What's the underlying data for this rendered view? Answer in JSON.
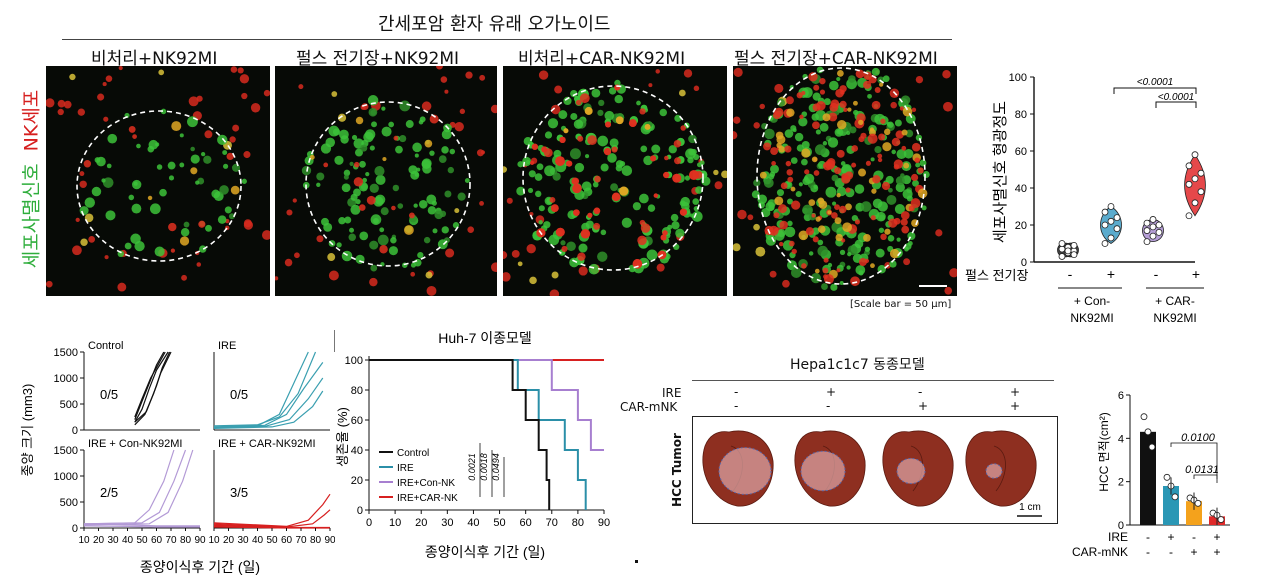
{
  "top": {
    "title": "간세포암 환자 유래 오가노이드",
    "panel_labels": [
      "비처리+NK92MI",
      "펄스 전기장+NK92MI",
      "비처리+CAR-NK92MI",
      "펄스 전기장+CAR-NK92MI"
    ],
    "side_label_green": "세포사멸신호",
    "side_label_red": "NK세포",
    "scale_bar": "[Scale bar = 50 μm]"
  },
  "violin": {
    "ylabel": "세포사멸신호 형광정도",
    "row_label": "펄스 전기장",
    "signs": [
      "-",
      "+",
      "-",
      "+"
    ],
    "group_labels": [
      "+ Con-\nNK92MI",
      "+ CAR-\nNK92MI"
    ],
    "group_label_lines": [
      [
        "+ Con-",
        "NK92MI"
      ],
      [
        "+ CAR-",
        "NK92MI"
      ]
    ],
    "p_values": [
      "<0.0001",
      "<0.0001"
    ],
    "colors": [
      "#222222",
      "#3e9cc4",
      "#a98ed0",
      "#e0282a"
    ]
  },
  "growth": {
    "ylabel": "종양 크기 (mm3)",
    "xlabel": "종양이식후 기간 (일)",
    "panels": [
      {
        "title": "Control",
        "ratio": "0/5",
        "color": "#111111"
      },
      {
        "title": "IRE",
        "ratio": "0/5",
        "color": "#3a9fb0"
      },
      {
        "title": "IRE + Con-NK92MI",
        "ratio": "2/5",
        "color": "#b39ad6"
      },
      {
        "title": "IRE + CAR-NK92MI",
        "ratio": "3/5",
        "color": "#d72020"
      }
    ],
    "yticks": [
      "0",
      "500",
      "1000",
      "1500"
    ],
    "xticks": [
      "10",
      "20",
      "30",
      "40",
      "50",
      "60",
      "70",
      "80",
      "90"
    ]
  },
  "survival": {
    "title": "Huh-7 이종모델",
    "ylabel": "생존율 (%)",
    "xlabel": "종양이식후 기간 (일)",
    "legend": [
      "Control",
      "IRE",
      "IRE+Con-NK",
      "IRE+CAR-NK"
    ],
    "p_values": [
      "0.0021",
      "0.0018",
      "0.0494"
    ],
    "yticks": [
      "0",
      "20",
      "40",
      "60",
      "80",
      "100"
    ],
    "xticks": [
      "0",
      "10",
      "20",
      "30",
      "40",
      "50",
      "60",
      "70",
      "80",
      "90"
    ]
  },
  "liver": {
    "title": "Hepa1c1c7 동종모델",
    "row_labels": [
      "IRE",
      "CAR-mNK"
    ],
    "ire_signs": [
      "-",
      "+",
      "-",
      "+"
    ],
    "car_signs": [
      "-",
      "-",
      "+",
      "+"
    ],
    "tumor_label": "HCC Tumor",
    "scale_bar": "1 cm"
  },
  "bar": {
    "ylabel": "HCC 면적(cm²)",
    "p_values": [
      "0.0100",
      "0.0131"
    ],
    "row_labels": [
      "IRE",
      "CAR-mNK"
    ],
    "ire_signs": [
      "-",
      "+",
      "-",
      "+"
    ],
    "car_signs": [
      "-",
      "-",
      "+",
      "+"
    ],
    "yticks": [
      "0",
      "2",
      "4",
      "6"
    ]
  },
  "chart_data": [
    {
      "type": "violin",
      "ylabel": "세포사멸신호 형광정도",
      "ylim": [
        0,
        100
      ],
      "categories": [
        "- Con-NK92MI",
        "+ Con-NK92MI",
        "- CAR-NK92MI",
        "+ CAR-NK92MI"
      ],
      "points": [
        [
          3,
          5,
          6,
          7,
          8,
          9,
          10,
          6,
          4
        ],
        [
          10,
          13,
          18,
          20,
          22,
          24,
          27,
          30
        ],
        [
          11,
          14,
          16,
          17,
          19,
          20,
          21,
          23
        ],
        [
          25,
          32,
          38,
          42,
          45,
          48,
          52,
          58
        ]
      ]
    },
    {
      "type": "line",
      "title": "Control",
      "xlabel": "종양이식후 기간 (일)",
      "ylabel": "종양 크기 (mm3)",
      "xlim": [
        10,
        90
      ],
      "ylim": [
        0,
        1500
      ],
      "series": [
        {
          "x": [
            45,
            50,
            55,
            60,
            65
          ],
          "y": [
            200,
            550,
            900,
            1250,
            1500
          ]
        },
        {
          "x": [
            45,
            50,
            55,
            60,
            68
          ],
          "y": [
            150,
            400,
            800,
            1150,
            1500
          ]
        },
        {
          "x": [
            45,
            52,
            58,
            63,
            70
          ],
          "y": [
            100,
            300,
            700,
            1100,
            1500
          ]
        },
        {
          "x": [
            45,
            50,
            56,
            62,
            66
          ],
          "y": [
            250,
            600,
            1000,
            1300,
            1500
          ]
        },
        {
          "x": [
            45,
            53,
            60,
            64,
            69
          ],
          "y": [
            150,
            350,
            850,
            1200,
            1500
          ]
        }
      ]
    },
    {
      "type": "line",
      "title": "IRE",
      "xlim": [
        10,
        90
      ],
      "ylim": [
        0,
        1500
      ],
      "series": [
        {
          "x": [
            10,
            40,
            55,
            65,
            75
          ],
          "y": [
            50,
            80,
            300,
            900,
            1500
          ]
        },
        {
          "x": [
            10,
            40,
            55,
            68,
            80
          ],
          "y": [
            80,
            100,
            250,
            700,
            1500
          ]
        },
        {
          "x": [
            10,
            45,
            60,
            72,
            85
          ],
          "y": [
            60,
            90,
            300,
            800,
            1300
          ]
        },
        {
          "x": [
            10,
            45,
            62,
            75,
            85
          ],
          "y": [
            40,
            70,
            200,
            600,
            1000
          ]
        },
        {
          "x": [
            10,
            50,
            65,
            78,
            85
          ],
          "y": [
            30,
            60,
            150,
            450,
            750
          ]
        }
      ]
    },
    {
      "type": "line",
      "title": "IRE + Con-NK92MI",
      "xlim": [
        10,
        90
      ],
      "ylim": [
        0,
        1500
      ],
      "series": [
        {
          "x": [
            10,
            45,
            55,
            65,
            72
          ],
          "y": [
            80,
            100,
            350,
            900,
            1500
          ]
        },
        {
          "x": [
            10,
            50,
            62,
            72,
            80
          ],
          "y": [
            80,
            100,
            300,
            900,
            1500
          ]
        },
        {
          "x": [
            10,
            55,
            68,
            78,
            85
          ],
          "y": [
            60,
            80,
            300,
            900,
            1500
          ]
        },
        {
          "x": [
            10,
            40,
            60,
            90
          ],
          "y": [
            80,
            60,
            40,
            40
          ]
        },
        {
          "x": [
            10,
            40,
            60,
            90
          ],
          "y": [
            40,
            30,
            20,
            20
          ]
        }
      ]
    },
    {
      "type": "line",
      "title": "IRE + CAR-NK92MI",
      "xlim": [
        10,
        90
      ],
      "ylim": [
        0,
        1500
      ],
      "series": [
        {
          "x": [
            10,
            60,
            75,
            85,
            90
          ],
          "y": [
            100,
            30,
            150,
            450,
            650
          ]
        },
        {
          "x": [
            10,
            60,
            78,
            86,
            90
          ],
          "y": [
            80,
            20,
            80,
            250,
            350
          ]
        },
        {
          "x": [
            10,
            60,
            90
          ],
          "y": [
            60,
            10,
            10
          ]
        },
        {
          "x": [
            10,
            60,
            90
          ],
          "y": [
            40,
            5,
            5
          ]
        },
        {
          "x": [
            10,
            60,
            90
          ],
          "y": [
            20,
            0,
            0
          ]
        }
      ]
    },
    {
      "type": "line",
      "title": "Huh-7 이종모델",
      "xlabel": "종양이식후 기간 (일)",
      "ylabel": "생존율 (%)",
      "xlim": [
        0,
        90
      ],
      "ylim": [
        0,
        100
      ],
      "series": [
        {
          "name": "Control",
          "x": [
            0,
            55,
            55,
            60,
            60,
            65,
            65,
            68,
            68,
            69,
            69
          ],
          "y": [
            100,
            100,
            80,
            80,
            60,
            60,
            40,
            40,
            20,
            20,
            0
          ]
        },
        {
          "name": "IRE",
          "x": [
            0,
            57,
            57,
            65,
            65,
            75,
            75,
            80,
            80,
            83,
            83
          ],
          "y": [
            100,
            100,
            80,
            80,
            60,
            60,
            40,
            40,
            20,
            20,
            0
          ]
        },
        {
          "name": "IRE+Con-NK",
          "x": [
            0,
            70,
            70,
            80,
            80,
            85,
            85,
            90
          ],
          "y": [
            100,
            100,
            80,
            80,
            60,
            60,
            40,
            40
          ]
        },
        {
          "name": "IRE+CAR-NK",
          "x": [
            0,
            90
          ],
          "y": [
            100,
            100
          ]
        }
      ]
    },
    {
      "type": "bar",
      "ylabel": "HCC 면적(cm²)",
      "ylim": [
        0,
        6
      ],
      "categories": [
        "IRE- CAR-mNK-",
        "IRE+ CAR-mNK-",
        "IRE- CAR-mNK+",
        "IRE+ CAR-mNK+"
      ],
      "values": [
        4.3,
        1.8,
        1.1,
        0.4
      ],
      "points": [
        [
          5.0,
          4.3,
          3.6
        ],
        [
          2.2,
          1.8,
          1.3
        ],
        [
          1.25,
          1.15,
          1.0
        ],
        [
          0.55,
          0.45,
          0.25
        ]
      ]
    }
  ]
}
